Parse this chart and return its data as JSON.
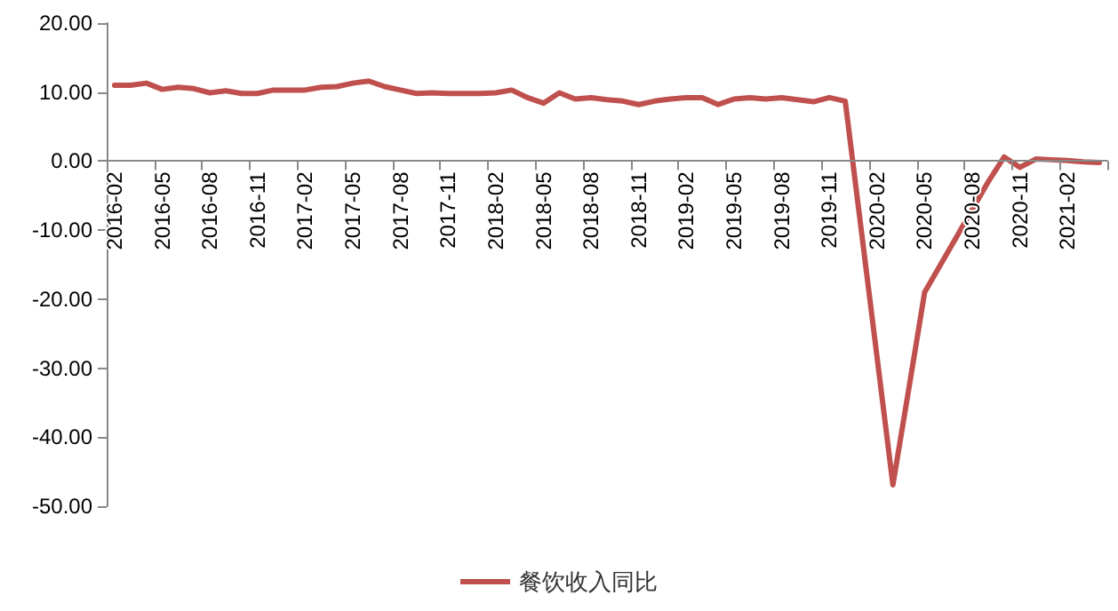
{
  "chart_data": {
    "type": "line",
    "categories": [
      "2016-02",
      null,
      null,
      "2016-05",
      null,
      null,
      "2016-08",
      null,
      null,
      "2016-11",
      null,
      null,
      "2017-02",
      null,
      null,
      "2017-05",
      null,
      null,
      "2017-08",
      null,
      null,
      "2017-11",
      null,
      null,
      "2018-02",
      null,
      null,
      "2018-05",
      null,
      null,
      "2018-08",
      null,
      null,
      "2018-11",
      null,
      null,
      "2019-02",
      null,
      null,
      "2019-05",
      null,
      null,
      "2019-08",
      null,
      null,
      "2019-11",
      null,
      null,
      "2020-02",
      null,
      null,
      "2020-05",
      null,
      null,
      "2020-08",
      null,
      null,
      "2020-11",
      null,
      null,
      "2021-02",
      null,
      null
    ],
    "series": [
      {
        "name": "餐饮收入同比",
        "color": "#c0504d",
        "values": [
          11.0,
          11.0,
          11.3,
          10.4,
          10.7,
          10.5,
          9.9,
          10.2,
          9.8,
          9.8,
          10.3,
          10.3,
          10.3,
          10.7,
          10.8,
          11.3,
          11.6,
          10.8,
          10.3,
          9.8,
          9.9,
          9.8,
          9.8,
          9.8,
          9.9,
          10.3,
          9.2,
          8.4,
          9.9,
          9.0,
          9.2,
          8.9,
          8.7,
          8.2,
          8.7,
          9.0,
          9.2,
          9.2,
          8.2,
          9.0,
          9.2,
          9.0,
          9.2,
          8.9,
          8.6,
          9.2,
          8.7,
          null,
          null,
          -46.9,
          -33,
          -19,
          -15,
          -11,
          -7,
          -3,
          0.6,
          -0.9,
          0.3,
          0.2,
          0.1,
          -0.1,
          -0.2
        ]
      }
    ],
    "ylim": [
      -50,
      20
    ],
    "yticks": [
      {
        "value": -50,
        "label": "-50.00"
      },
      {
        "value": -40,
        "label": "-40.00"
      },
      {
        "value": -30,
        "label": "-30.00"
      },
      {
        "value": -20,
        "label": "-20.00"
      },
      {
        "value": -10,
        "label": "-10.00"
      },
      {
        "value": 0,
        "label": "0.00"
      },
      {
        "value": 10,
        "label": "10.00"
      },
      {
        "value": 20,
        "label": "20.00"
      }
    ],
    "grid": false,
    "legend": "bottom",
    "marker": "none",
    "line_style": "solid"
  }
}
